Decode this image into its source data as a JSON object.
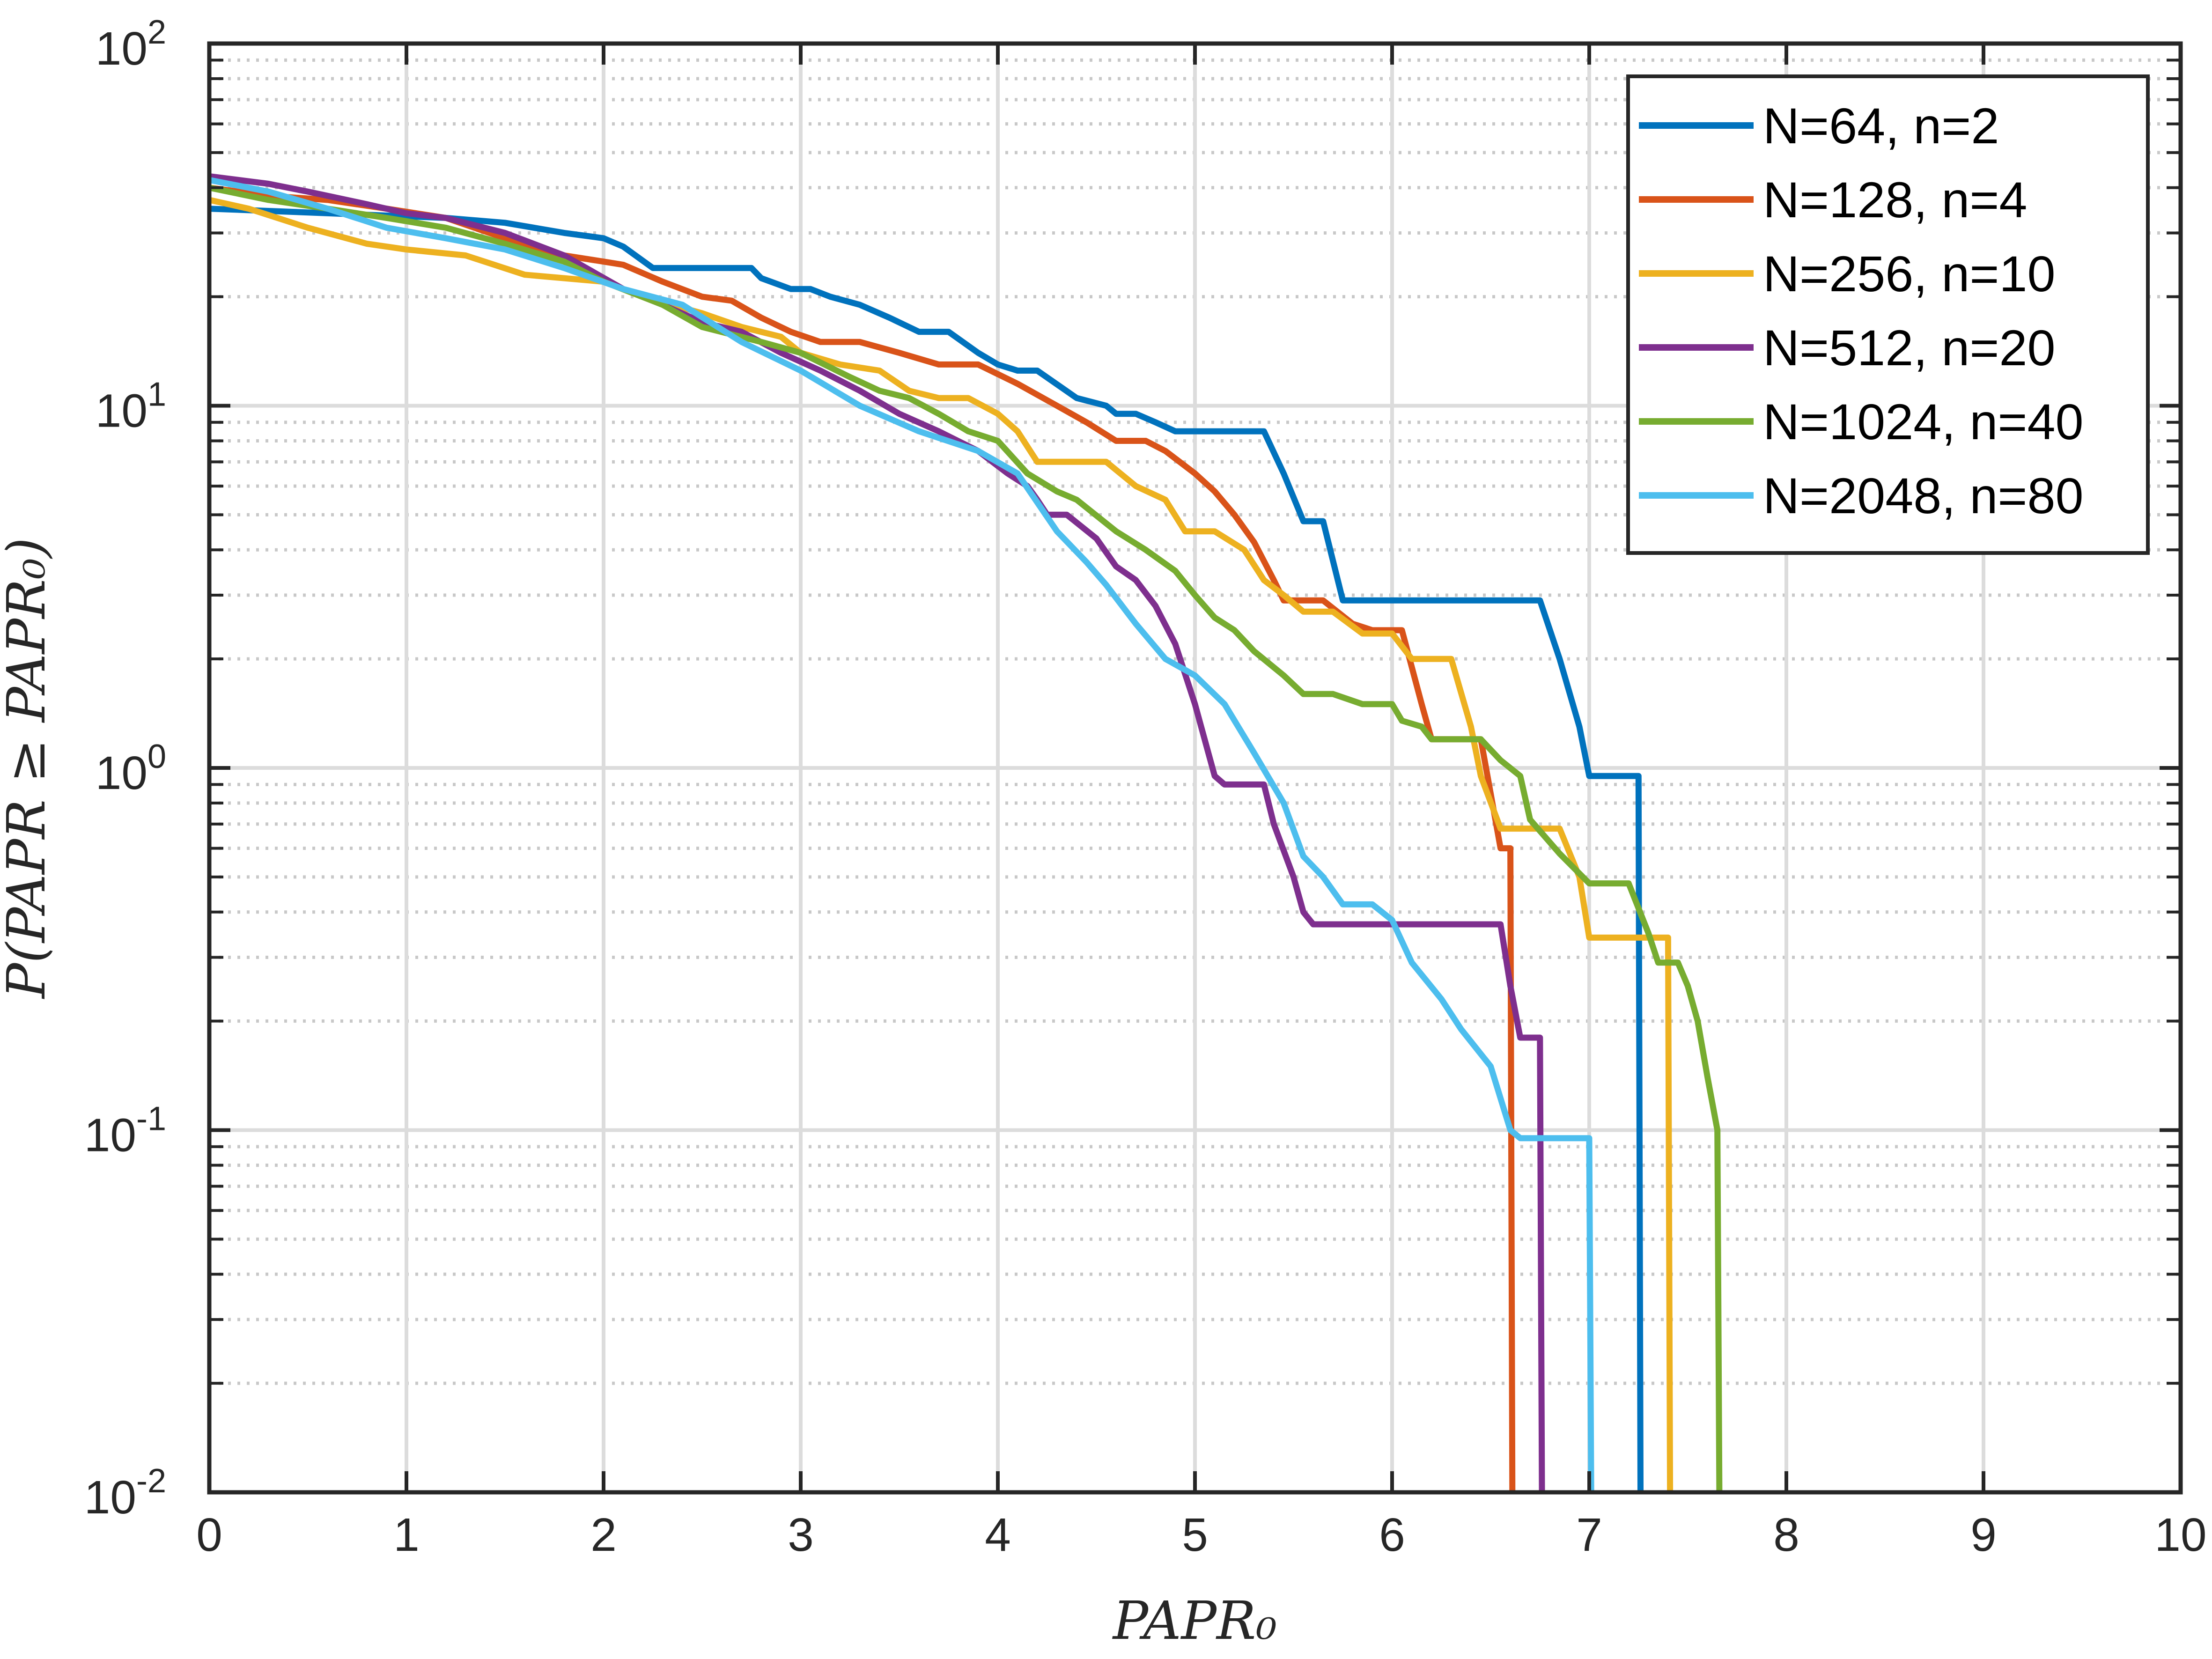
{
  "chart_data": {
    "type": "line",
    "xlabel": "PAPR₀",
    "ylabel": "P(PAPR ≥ PAPR₀)",
    "xlim": [
      0,
      10
    ],
    "ylim": [
      0.01,
      100
    ],
    "yscale": "log",
    "grid": true,
    "legend_position": "top-right",
    "x_ticks": [
      "0",
      "1",
      "2",
      "3",
      "4",
      "5",
      "6",
      "7",
      "8",
      "9",
      "10"
    ],
    "y_ticks": [
      {
        "base": "10",
        "exp": "-2",
        "value": 0.01
      },
      {
        "base": "10",
        "exp": "-1",
        "value": 0.1
      },
      {
        "base": "10",
        "exp": "0",
        "value": 1
      },
      {
        "base": "10",
        "exp": "1",
        "value": 10
      },
      {
        "base": "10",
        "exp": "2",
        "value": 100
      }
    ],
    "series": [
      {
        "name": "N=64, n=2",
        "color": "#0072BD",
        "x": [
          0,
          0.3,
          0.6,
          0.9,
          1.2,
          1.5,
          1.8,
          2.0,
          2.1,
          2.25,
          2.5,
          2.75,
          2.8,
          2.95,
          3.05,
          3.15,
          3.3,
          3.45,
          3.6,
          3.75,
          3.9,
          4.0,
          4.1,
          4.2,
          4.4,
          4.55,
          4.6,
          4.7,
          4.8,
          4.9,
          5.0,
          5.2,
          5.35,
          5.45,
          5.55,
          5.65,
          5.75,
          6.0,
          6.5,
          6.75,
          6.85,
          6.95,
          7.0,
          7.2,
          7.25,
          7.26
        ],
        "y": [
          35,
          34.5,
          34,
          33.5,
          33,
          32,
          30,
          29,
          27.5,
          24,
          24,
          24,
          22.5,
          21,
          21,
          20,
          19,
          17.5,
          16,
          16,
          14,
          13,
          12.5,
          12.5,
          10.5,
          10,
          9.5,
          9.5,
          9,
          8.5,
          8.5,
          8.5,
          8.5,
          6.5,
          4.8,
          4.8,
          2.9,
          2.9,
          2.9,
          2.9,
          2.0,
          1.3,
          0.95,
          0.95,
          0.95,
          0.01
        ]
      },
      {
        "name": "N=128, n=4",
        "color": "#D95319",
        "x": [
          0,
          0.3,
          0.6,
          0.9,
          1.2,
          1.5,
          1.8,
          2.0,
          2.1,
          2.3,
          2.5,
          2.65,
          2.8,
          2.95,
          3.1,
          3.3,
          3.5,
          3.7,
          3.9,
          4.1,
          4.3,
          4.45,
          4.6,
          4.75,
          4.85,
          5.0,
          5.1,
          5.2,
          5.3,
          5.4,
          5.45,
          5.5,
          5.55,
          5.65,
          5.8,
          5.9,
          6.05,
          6.15,
          6.2,
          6.3,
          6.45,
          6.5,
          6.55,
          6.6,
          6.61
        ],
        "y": [
          40,
          38,
          37,
          35,
          33,
          29,
          26,
          25,
          24.5,
          22,
          20,
          19.5,
          17.5,
          16,
          15,
          15,
          14,
          13,
          13,
          11.5,
          10,
          9,
          8,
          8,
          7.5,
          6.5,
          5.8,
          5.0,
          4.2,
          3.3,
          2.9,
          2.9,
          2.9,
          2.9,
          2.5,
          2.4,
          2.4,
          1.5,
          1.2,
          1.2,
          1.2,
          0.85,
          0.6,
          0.6,
          0.01
        ]
      },
      {
        "name": "N=256, n=10",
        "color": "#EDB120",
        "x": [
          0,
          0.2,
          0.5,
          0.8,
          1.0,
          1.3,
          1.6,
          1.8,
          2.0,
          2.2,
          2.5,
          2.7,
          2.9,
          3.0,
          3.2,
          3.4,
          3.55,
          3.7,
          3.85,
          4.0,
          4.1,
          4.2,
          4.35,
          4.55,
          4.7,
          4.85,
          4.95,
          5.1,
          5.25,
          5.35,
          5.45,
          5.55,
          5.7,
          5.85,
          6.0,
          6.1,
          6.3,
          6.4,
          6.45,
          6.55,
          6.6,
          6.75,
          6.85,
          6.95,
          7.0,
          7.1,
          7.25,
          7.3,
          7.35,
          7.4,
          7.41
        ],
        "y": [
          37,
          35,
          31,
          28,
          27,
          26,
          23,
          22.5,
          22,
          20,
          18,
          16.5,
          15.5,
          14,
          13,
          12.5,
          11,
          10.5,
          10.5,
          9.5,
          8.5,
          7,
          7,
          7,
          6,
          5.5,
          4.5,
          4.5,
          4,
          3.3,
          3.0,
          2.7,
          2.7,
          2.35,
          2.35,
          2.0,
          2.0,
          1.3,
          0.95,
          0.68,
          0.68,
          0.68,
          0.68,
          0.5,
          0.34,
          0.34,
          0.34,
          0.34,
          0.34,
          0.34,
          0.01
        ]
      },
      {
        "name": "N=512, n=20",
        "color": "#7E2F8E",
        "x": [
          0,
          0.3,
          0.5,
          0.8,
          1.0,
          1.2,
          1.5,
          1.8,
          2.1,
          2.3,
          2.5,
          2.7,
          2.9,
          3.1,
          3.3,
          3.5,
          3.7,
          3.9,
          4.05,
          4.15,
          4.2,
          4.25,
          4.35,
          4.5,
          4.6,
          4.7,
          4.8,
          4.9,
          5.0,
          5.1,
          5.15,
          5.25,
          5.35,
          5.4,
          5.5,
          5.55,
          5.6,
          5.7,
          5.8,
          6.0,
          6.2,
          6.4,
          6.55,
          6.6,
          6.65,
          6.7,
          6.75,
          6.76
        ],
        "y": [
          43,
          41,
          39,
          36,
          34,
          33,
          30,
          26,
          21,
          19,
          17,
          16,
          14,
          12.5,
          11,
          9.5,
          8.5,
          7.5,
          6.5,
          6,
          5.5,
          5,
          5,
          4.3,
          3.6,
          3.3,
          2.8,
          2.2,
          1.5,
          0.95,
          0.9,
          0.9,
          0.9,
          0.7,
          0.5,
          0.4,
          0.37,
          0.37,
          0.37,
          0.37,
          0.37,
          0.37,
          0.37,
          0.25,
          0.18,
          0.18,
          0.18,
          0.01
        ]
      },
      {
        "name": "N=1024, n=40",
        "color": "#77AC30",
        "x": [
          0,
          0.3,
          0.6,
          0.9,
          1.2,
          1.5,
          1.8,
          2.0,
          2.3,
          2.5,
          2.8,
          3.0,
          3.25,
          3.4,
          3.55,
          3.7,
          3.85,
          4.0,
          4.15,
          4.3,
          4.4,
          4.6,
          4.75,
          4.9,
          5.0,
          5.1,
          5.2,
          5.3,
          5.45,
          5.55,
          5.7,
          5.85,
          6.0,
          6.05,
          6.15,
          6.2,
          6.3,
          6.45,
          6.55,
          6.65,
          6.7,
          6.85,
          7.0,
          7.1,
          7.2,
          7.3,
          7.35,
          7.45,
          7.5,
          7.55,
          7.6,
          7.65,
          7.66
        ],
        "y": [
          40,
          37,
          35,
          33,
          31,
          28,
          25,
          22,
          19,
          16.5,
          15,
          14,
          12,
          11,
          10.5,
          9.5,
          8.5,
          8,
          6.5,
          5.8,
          5.5,
          4.5,
          4,
          3.5,
          3.0,
          2.6,
          2.4,
          2.1,
          1.8,
          1.6,
          1.6,
          1.5,
          1.5,
          1.35,
          1.3,
          1.2,
          1.2,
          1.2,
          1.05,
          0.95,
          0.72,
          0.58,
          0.48,
          0.48,
          0.48,
          0.35,
          0.29,
          0.29,
          0.25,
          0.2,
          0.14,
          0.1,
          0.01
        ]
      },
      {
        "name": "N=2048, n=80",
        "color": "#4DBEEE",
        "x": [
          0,
          0.3,
          0.6,
          0.9,
          1.2,
          1.5,
          1.8,
          2.1,
          2.4,
          2.7,
          3.0,
          3.3,
          3.6,
          3.9,
          4.1,
          4.3,
          4.45,
          4.55,
          4.7,
          4.85,
          5.0,
          5.15,
          5.3,
          5.45,
          5.55,
          5.65,
          5.75,
          5.9,
          6.0,
          6.1,
          6.25,
          6.35,
          6.5,
          6.6,
          6.65,
          6.75,
          6.85,
          6.95,
          7.0,
          7.01
        ],
        "y": [
          42,
          39,
          35,
          31,
          29,
          27,
          24,
          21,
          19,
          15,
          12.5,
          10,
          8.5,
          7.5,
          6.5,
          4.5,
          3.7,
          3.2,
          2.5,
          2.0,
          1.8,
          1.5,
          1.1,
          0.8,
          0.57,
          0.5,
          0.42,
          0.42,
          0.38,
          0.29,
          0.23,
          0.19,
          0.15,
          0.1,
          0.095,
          0.095,
          0.095,
          0.095,
          0.095,
          0.01
        ]
      }
    ]
  }
}
